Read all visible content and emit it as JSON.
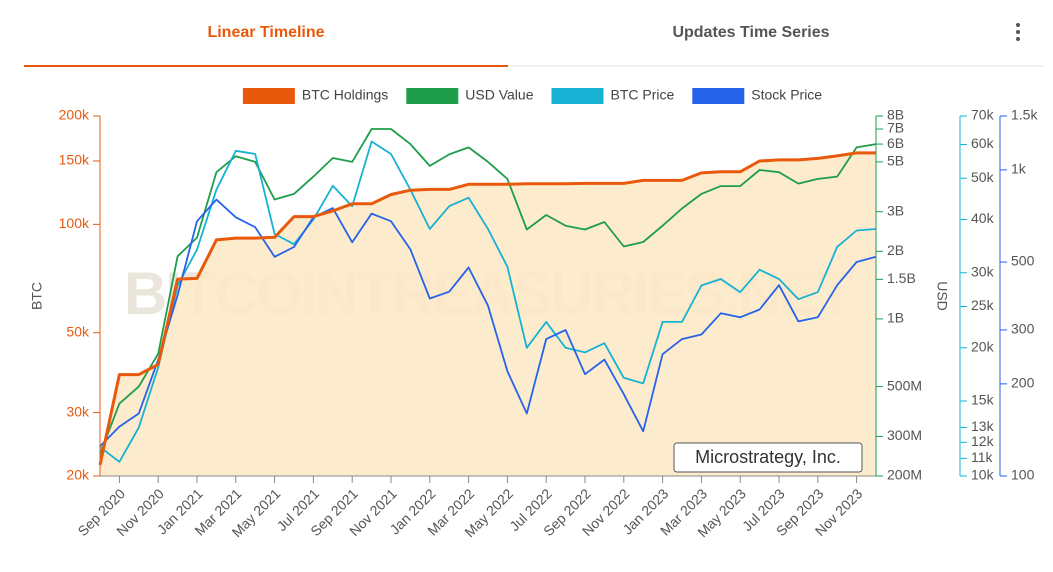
{
  "tabs": [
    "Linear Timeline",
    "Updates Time Series"
  ],
  "chart_data": {
    "type": "line",
    "annotation": "Microstrategy, Inc.",
    "watermark": "BITCOINTREASURIES.NET",
    "ylabel": "BTC",
    "y2label": "USD",
    "legend": "top",
    "log_scale": true,
    "grid": false,
    "x": [
      "2020-08",
      "2020-09",
      "2020-10",
      "2020-11",
      "2020-12",
      "2021-01",
      "2021-02",
      "2021-03",
      "2021-04",
      "2021-05",
      "2021-06",
      "2021-07",
      "2021-08",
      "2021-09",
      "2021-10",
      "2021-11",
      "2021-12",
      "2022-01",
      "2022-02",
      "2022-03",
      "2022-04",
      "2022-05",
      "2022-06",
      "2022-07",
      "2022-08",
      "2022-09",
      "2022-10",
      "2022-11",
      "2022-12",
      "2023-01",
      "2023-02",
      "2023-03",
      "2023-04",
      "2023-05",
      "2023-06",
      "2023-07",
      "2023-08",
      "2023-09",
      "2023-10",
      "2023-11",
      "2023-12"
    ],
    "xlim": [
      "2020-08",
      "2023-12"
    ],
    "xticks": [
      {
        "value": "2020-09",
        "label": "Sep 2020"
      },
      {
        "value": "2020-11",
        "label": "Nov 2020"
      },
      {
        "value": "2021-01",
        "label": "Jan 2021"
      },
      {
        "value": "2021-03",
        "label": "Mar 2021"
      },
      {
        "value": "2021-05",
        "label": "May 2021"
      },
      {
        "value": "2021-07",
        "label": "Jul 2021"
      },
      {
        "value": "2021-09",
        "label": "Sep 2021"
      },
      {
        "value": "2021-11",
        "label": "Nov 2021"
      },
      {
        "value": "2022-01",
        "label": "Jan 2022"
      },
      {
        "value": "2022-03",
        "label": "Mar 2022"
      },
      {
        "value": "2022-05",
        "label": "May 2022"
      },
      {
        "value": "2022-07",
        "label": "Jul 2022"
      },
      {
        "value": "2022-09",
        "label": "Sep 2022"
      },
      {
        "value": "2022-11",
        "label": "Nov 2022"
      },
      {
        "value": "2023-01",
        "label": "Jan 2023"
      },
      {
        "value": "2023-03",
        "label": "Mar 2023"
      },
      {
        "value": "2023-05",
        "label": "May 2023"
      },
      {
        "value": "2023-07",
        "label": "Jul 2023"
      },
      {
        "value": "2023-09",
        "label": "Sep 2023"
      },
      {
        "value": "2023-11",
        "label": "Nov 2023"
      }
    ],
    "ylim": [
      20000,
      200000
    ],
    "yticks": [
      {
        "value": 20000,
        "label": "20k"
      },
      {
        "value": 30000,
        "label": "30k"
      },
      {
        "value": 50000,
        "label": "50k"
      },
      {
        "value": 100000,
        "label": "100k"
      },
      {
        "value": 150000,
        "label": "150k"
      },
      {
        "value": 200000,
        "label": "200k"
      }
    ],
    "y2lim": [
      200000000,
      8000000000
    ],
    "y2ticks": [
      {
        "value": 200000000,
        "label": "200M"
      },
      {
        "value": 300000000,
        "label": "300M"
      },
      {
        "value": 500000000,
        "label": "500M"
      },
      {
        "value": 1000000000,
        "label": "1B"
      },
      {
        "value": 1500000000,
        "label": "1.5B"
      },
      {
        "value": 2000000000,
        "label": "2B"
      },
      {
        "value": 3000000000,
        "label": "3B"
      },
      {
        "value": 5000000000,
        "label": "5B"
      },
      {
        "value": 6000000000,
        "label": "6B"
      },
      {
        "value": 7000000000,
        "label": "7B"
      },
      {
        "value": 8000000000,
        "label": "8B"
      }
    ],
    "y3lim": [
      10000,
      70000
    ],
    "y3ticks": [
      {
        "value": 10000,
        "label": "10k"
      },
      {
        "value": 11000,
        "label": "11k"
      },
      {
        "value": 12000,
        "label": "12k"
      },
      {
        "value": 13000,
        "label": "13k"
      },
      {
        "value": 15000,
        "label": "15k"
      },
      {
        "value": 20000,
        "label": "20k"
      },
      {
        "value": 25000,
        "label": "25k"
      },
      {
        "value": 30000,
        "label": "30k"
      },
      {
        "value": 40000,
        "label": "40k"
      },
      {
        "value": 50000,
        "label": "50k"
      },
      {
        "value": 60000,
        "label": "60k"
      },
      {
        "value": 70000,
        "label": "70k"
      }
    ],
    "y4lim": [
      100,
      1500
    ],
    "y4ticks": [
      100,
      200,
      300,
      500,
      {
        "value": 1000,
        "label": "1k"
      },
      {
        "value": 1500,
        "label": "1.5k"
      }
    ],
    "series": [
      {
        "name": "BTC Holdings",
        "color": "#e8590c",
        "axis": "y",
        "fill": "#fde8c4",
        "values": [
          21454,
          38250,
          38250,
          40824,
          70470,
          70784,
          90531,
          91579,
          91579,
          92079,
          105085,
          105085,
          108992,
          114042,
          114042,
          121044,
          124391,
          125051,
          125051,
          129218,
          129218,
          129218,
          129699,
          129699,
          129699,
          130000,
          130000,
          130000,
          132500,
          132500,
          132500,
          138955,
          140000,
          140000,
          150000,
          151000,
          151000,
          152500,
          155000,
          158000,
          158000
        ]
      },
      {
        "name": "USD Value",
        "color": "#1e9e4a",
        "axis": "y2",
        "values": [
          250000000,
          420000000,
          500000000,
          700000000,
          1900000000,
          2300000000,
          4500000000,
          5300000000,
          5000000000,
          3400000000,
          3600000000,
          4300000000,
          5200000000,
          5000000000,
          7000000000,
          7000000000,
          6000000000,
          4800000000,
          5400000000,
          5800000000,
          5000000000,
          4200000000,
          2500000000,
          2900000000,
          2600000000,
          2500000000,
          2700000000,
          2100000000,
          2200000000,
          2600000000,
          3100000000,
          3600000000,
          3900000000,
          3900000000,
          4600000000,
          4500000000,
          4000000000,
          4200000000,
          4300000000,
          5800000000,
          6000000000
        ]
      },
      {
        "name": "BTC Price",
        "color": "#17b2d3",
        "axis": "y3",
        "values": [
          11700,
          10800,
          13000,
          18000,
          28000,
          34000,
          47000,
          58000,
          57000,
          37000,
          35000,
          40000,
          48000,
          43000,
          61000,
          57000,
          47000,
          38000,
          43000,
          45000,
          38000,
          31000,
          20000,
          23000,
          20000,
          19500,
          20500,
          17000,
          16500,
          23000,
          23000,
          28000,
          29000,
          27000,
          30500,
          29000,
          26000,
          27000,
          34500,
          37700,
          38000
        ]
      },
      {
        "name": "Stock Price",
        "color": "#2563eb",
        "axis": "y4",
        "values": [
          125,
          145,
          160,
          240,
          390,
          680,
          800,
          700,
          650,
          520,
          560,
          700,
          750,
          580,
          720,
          680,
          550,
          380,
          400,
          480,
          360,
          220,
          160,
          280,
          300,
          215,
          240,
          185,
          140,
          250,
          280,
          290,
          340,
          330,
          350,
          420,
          320,
          330,
          420,
          500,
          520
        ]
      }
    ]
  }
}
